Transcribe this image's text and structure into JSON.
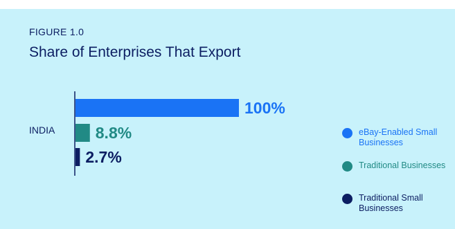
{
  "figure_label": "FIGURE 1.0",
  "title": "Share of Enterprises That Export",
  "chart_data": {
    "type": "bar",
    "orientation": "horizontal",
    "categories": [
      "INDIA"
    ],
    "series": [
      {
        "name": "eBay-Enabled Small Businesses",
        "values": [
          100
        ],
        "label": "100%",
        "color": "#1a73f5"
      },
      {
        "name": "Traditional Businesses",
        "values": [
          8.8
        ],
        "label": "8.8%",
        "color": "#218a85"
      },
      {
        "name": "Traditional Small Businesses",
        "values": [
          2.7
        ],
        "label": "2.7%",
        "color": "#0c1e62"
      }
    ],
    "xlim": [
      0,
      100
    ],
    "grid": false,
    "legend_position": "right"
  },
  "colors": {
    "background": "#c8f2fb",
    "text": "#0c1e62",
    "axis": "#0c1e62"
  }
}
